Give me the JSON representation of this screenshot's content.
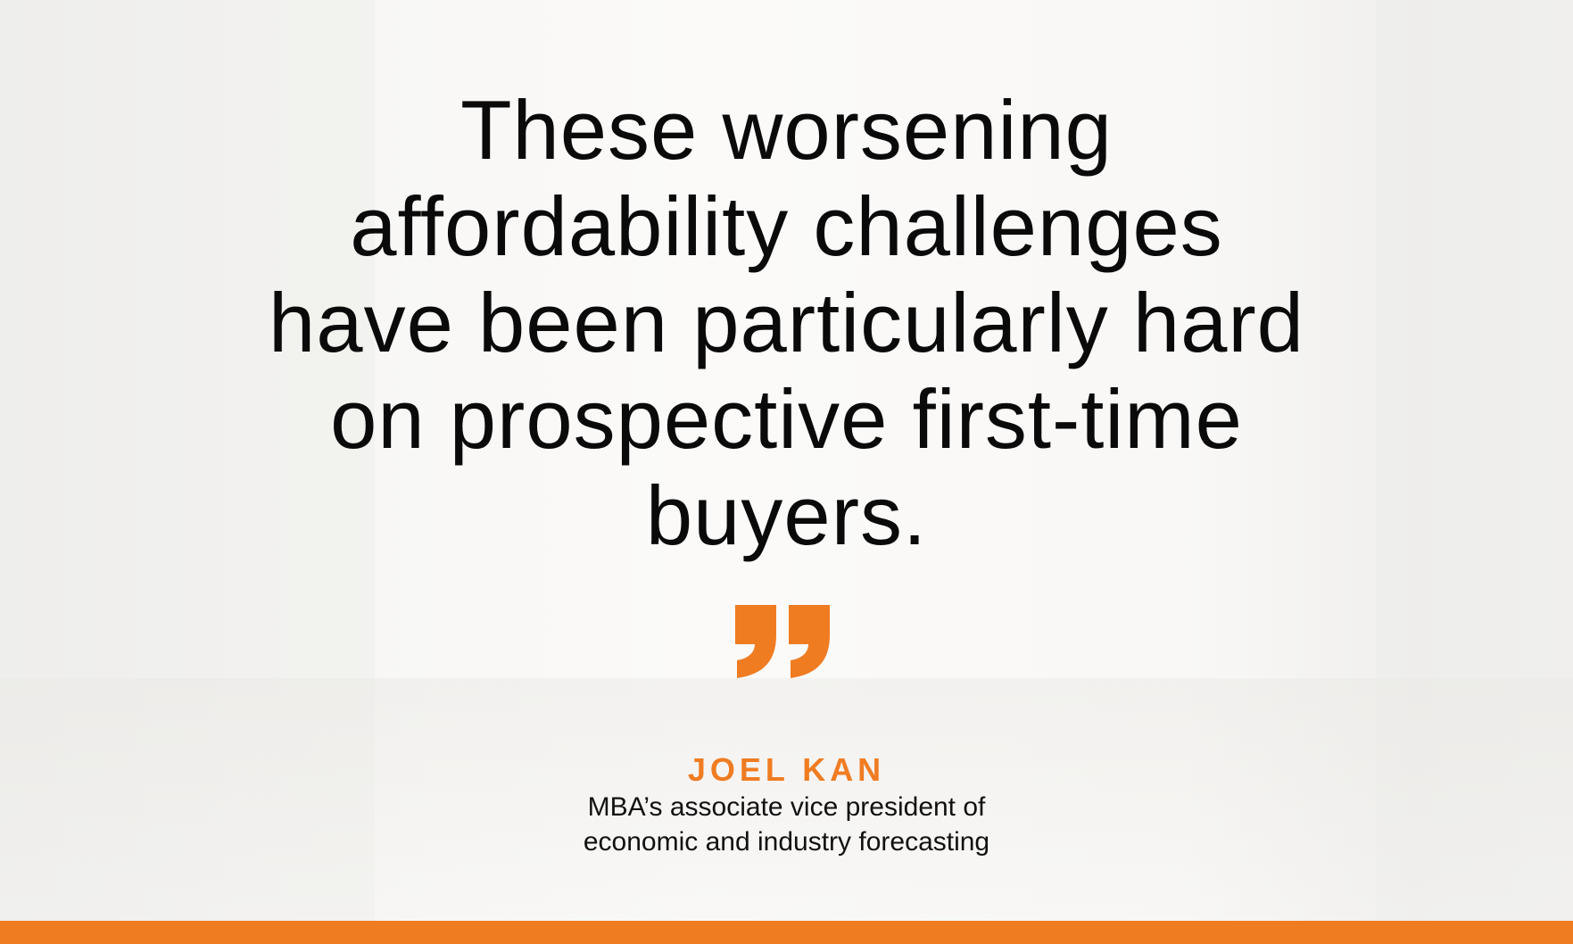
{
  "quote": {
    "lines": [
      "These worsening",
      "affordability challenges",
      "have been particularly hard",
      "on prospective first-time",
      "buyers."
    ]
  },
  "attribution": {
    "name": "JOEL KAN",
    "title_lines": [
      "MBA’s associate vice president of",
      "economic and industry forecasting"
    ]
  },
  "icons": {
    "quote_mark": "closing-quote-icon"
  },
  "colors": {
    "accent": "#f07c22",
    "text": "#0a0a0a"
  }
}
